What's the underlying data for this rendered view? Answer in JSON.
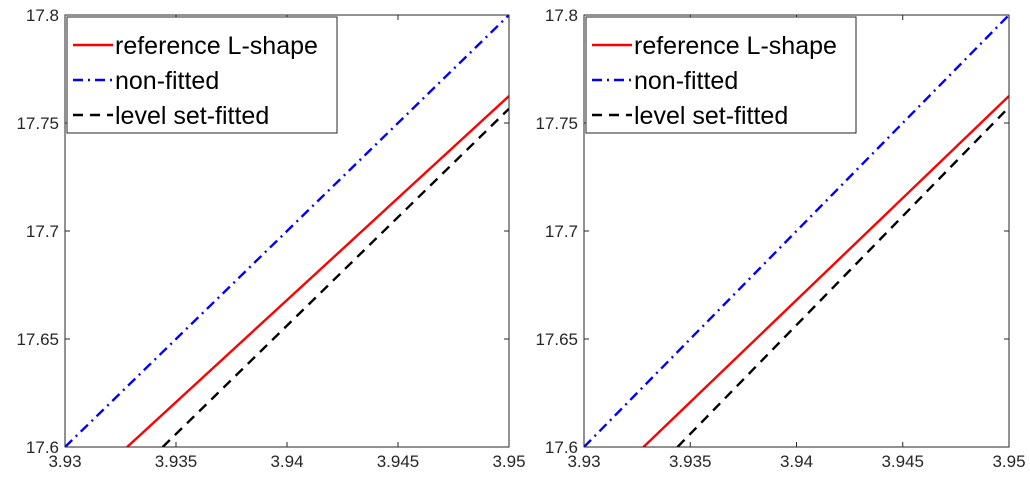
{
  "chart_data": [
    {
      "type": "line",
      "xlim": [
        3.93,
        3.95
      ],
      "ylim": [
        17.6,
        17.8
      ],
      "x_ticks": [
        "3.93",
        "3.935",
        "3.94",
        "3.945",
        "3.95"
      ],
      "y_ticks": [
        "17.6",
        "17.65",
        "17.7",
        "17.75",
        "17.8"
      ],
      "grid": false,
      "legend_position": "top-left",
      "series": [
        {
          "name": "reference L-shape",
          "color": "#ff0000",
          "style": "solid",
          "points": [
            [
              3.9328,
              17.6
            ],
            [
              3.95,
              17.7625
            ]
          ]
        },
        {
          "name": "non-fitted",
          "color": "#0000ff",
          "style": "dash-dot",
          "points": [
            [
              3.93,
              17.6
            ],
            [
              3.95,
              17.8
            ]
          ]
        },
        {
          "name": "level set-fitted",
          "color": "#000000",
          "style": "dashed",
          "points": [
            [
              3.9344,
              17.6
            ],
            [
              3.95,
              17.7566
            ]
          ]
        }
      ]
    },
    {
      "type": "line",
      "xlim": [
        3.93,
        3.95
      ],
      "ylim": [
        17.6,
        17.8
      ],
      "x_ticks": [
        "3.93",
        "3.935",
        "3.94",
        "3.945",
        "3.95"
      ],
      "y_ticks": [
        "17.6",
        "17.65",
        "17.7",
        "17.75",
        "17.8"
      ],
      "grid": false,
      "legend_position": "top-left",
      "series": [
        {
          "name": "reference L-shape",
          "color": "#ff0000",
          "style": "solid",
          "points": [
            [
              3.9328,
              17.6
            ],
            [
              3.95,
              17.7625
            ]
          ]
        },
        {
          "name": "non-fitted",
          "color": "#0000ff",
          "style": "dash-dot",
          "points": [
            [
              3.93,
              17.6
            ],
            [
              3.95,
              17.8
            ]
          ]
        },
        {
          "name": "level set-fitted",
          "color": "#000000",
          "style": "dashed",
          "points": [
            [
              3.9344,
              17.6
            ],
            [
              3.95,
              17.7573
            ]
          ]
        }
      ]
    }
  ]
}
